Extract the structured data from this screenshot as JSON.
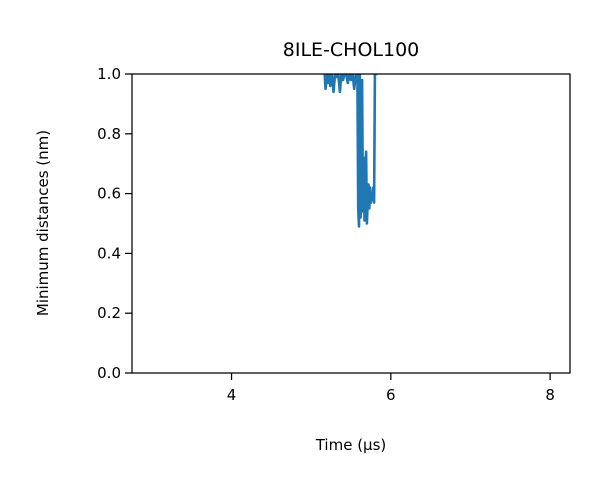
{
  "chart_data": {
    "type": "line",
    "title": "8ILE-CHOL100",
    "xlabel": "Time (μs)",
    "ylabel": "Minimum distances (nm)",
    "xlim": [
      2.75,
      8.25
    ],
    "ylim": [
      0.0,
      1.0
    ],
    "xticks": [
      4,
      6,
      8
    ],
    "xtick_labels": [
      "4",
      "6",
      "8"
    ],
    "yticks": [
      0.0,
      0.2,
      0.4,
      0.6,
      0.8,
      1.0
    ],
    "ytick_labels": [
      "0.0",
      "0.2",
      "0.4",
      "0.6",
      "0.8",
      "1.0"
    ],
    "grid": false,
    "legend": "none",
    "series": [
      {
        "color": "#1f77b4",
        "x": [
          5.17,
          5.18,
          5.2,
          5.21,
          5.23,
          5.24,
          5.26,
          5.28,
          5.3,
          5.32,
          5.34,
          5.36,
          5.38,
          5.4,
          5.42,
          5.44,
          5.46,
          5.48,
          5.5,
          5.52,
          5.54,
          5.56,
          5.58,
          5.59,
          5.6,
          5.61,
          5.62,
          5.63,
          5.64,
          5.65,
          5.66,
          5.67,
          5.68,
          5.69,
          5.7,
          5.71,
          5.72,
          5.73,
          5.74,
          5.75,
          5.76,
          5.77,
          5.78,
          5.79,
          5.8,
          5.81,
          5.82,
          5.83
        ],
        "y": [
          1.0,
          0.95,
          1.0,
          0.97,
          1.0,
          0.96,
          1.0,
          0.94,
          1.0,
          0.99,
          1.0,
          0.94,
          1.0,
          0.98,
          1.0,
          1.0,
          0.97,
          1.0,
          0.98,
          1.0,
          0.95,
          1.0,
          1.0,
          0.55,
          0.49,
          1.0,
          0.52,
          0.6,
          0.98,
          0.54,
          0.72,
          0.51,
          0.66,
          0.74,
          0.5,
          0.57,
          0.63,
          0.55,
          0.62,
          0.57,
          0.6,
          0.58,
          0.62,
          0.57,
          1.0,
          1.0,
          1.0,
          1.0
        ]
      }
    ]
  }
}
